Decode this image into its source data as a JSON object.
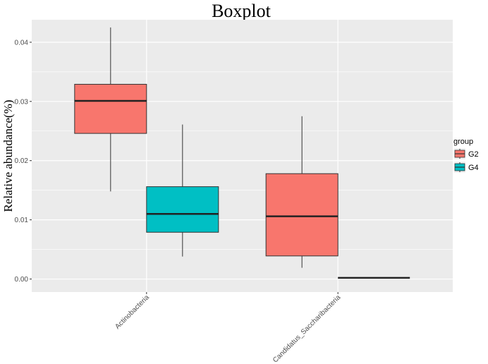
{
  "chart_data": {
    "type": "boxplot",
    "title": "Boxplot",
    "xlabel": "",
    "ylabel": "Relative abundance(%)",
    "ylim": [
      -0.0022,
      0.0438
    ],
    "yticks": [
      "0.00",
      "0.01",
      "0.02",
      "0.03",
      "0.04"
    ],
    "categories": [
      "Actinobacteria",
      "Candidatus_Saccharibacteria"
    ],
    "grid": true,
    "legend": {
      "title": "group",
      "position": "right",
      "entries": [
        "G2",
        "G4"
      ]
    },
    "colors": {
      "G2": "#f8766d",
      "G4": "#00bfc4"
    },
    "series": [
      {
        "name": "G2",
        "boxes": [
          {
            "min": 0.0148,
            "q1": 0.0246,
            "median": 0.0301,
            "q3": 0.0329,
            "max": 0.0425
          },
          {
            "min": 0.0019,
            "q1": 0.0039,
            "median": 0.0106,
            "q3": 0.0178,
            "max": 0.0275
          }
        ]
      },
      {
        "name": "G4",
        "boxes": [
          {
            "min": 0.0038,
            "q1": 0.0079,
            "median": 0.011,
            "q3": 0.0156,
            "max": 0.0261
          },
          {
            "min": 0.0002,
            "q1": 0.0002,
            "median": 0.0002,
            "q3": 0.0002,
            "max": 0.0002
          }
        ]
      }
    ]
  }
}
